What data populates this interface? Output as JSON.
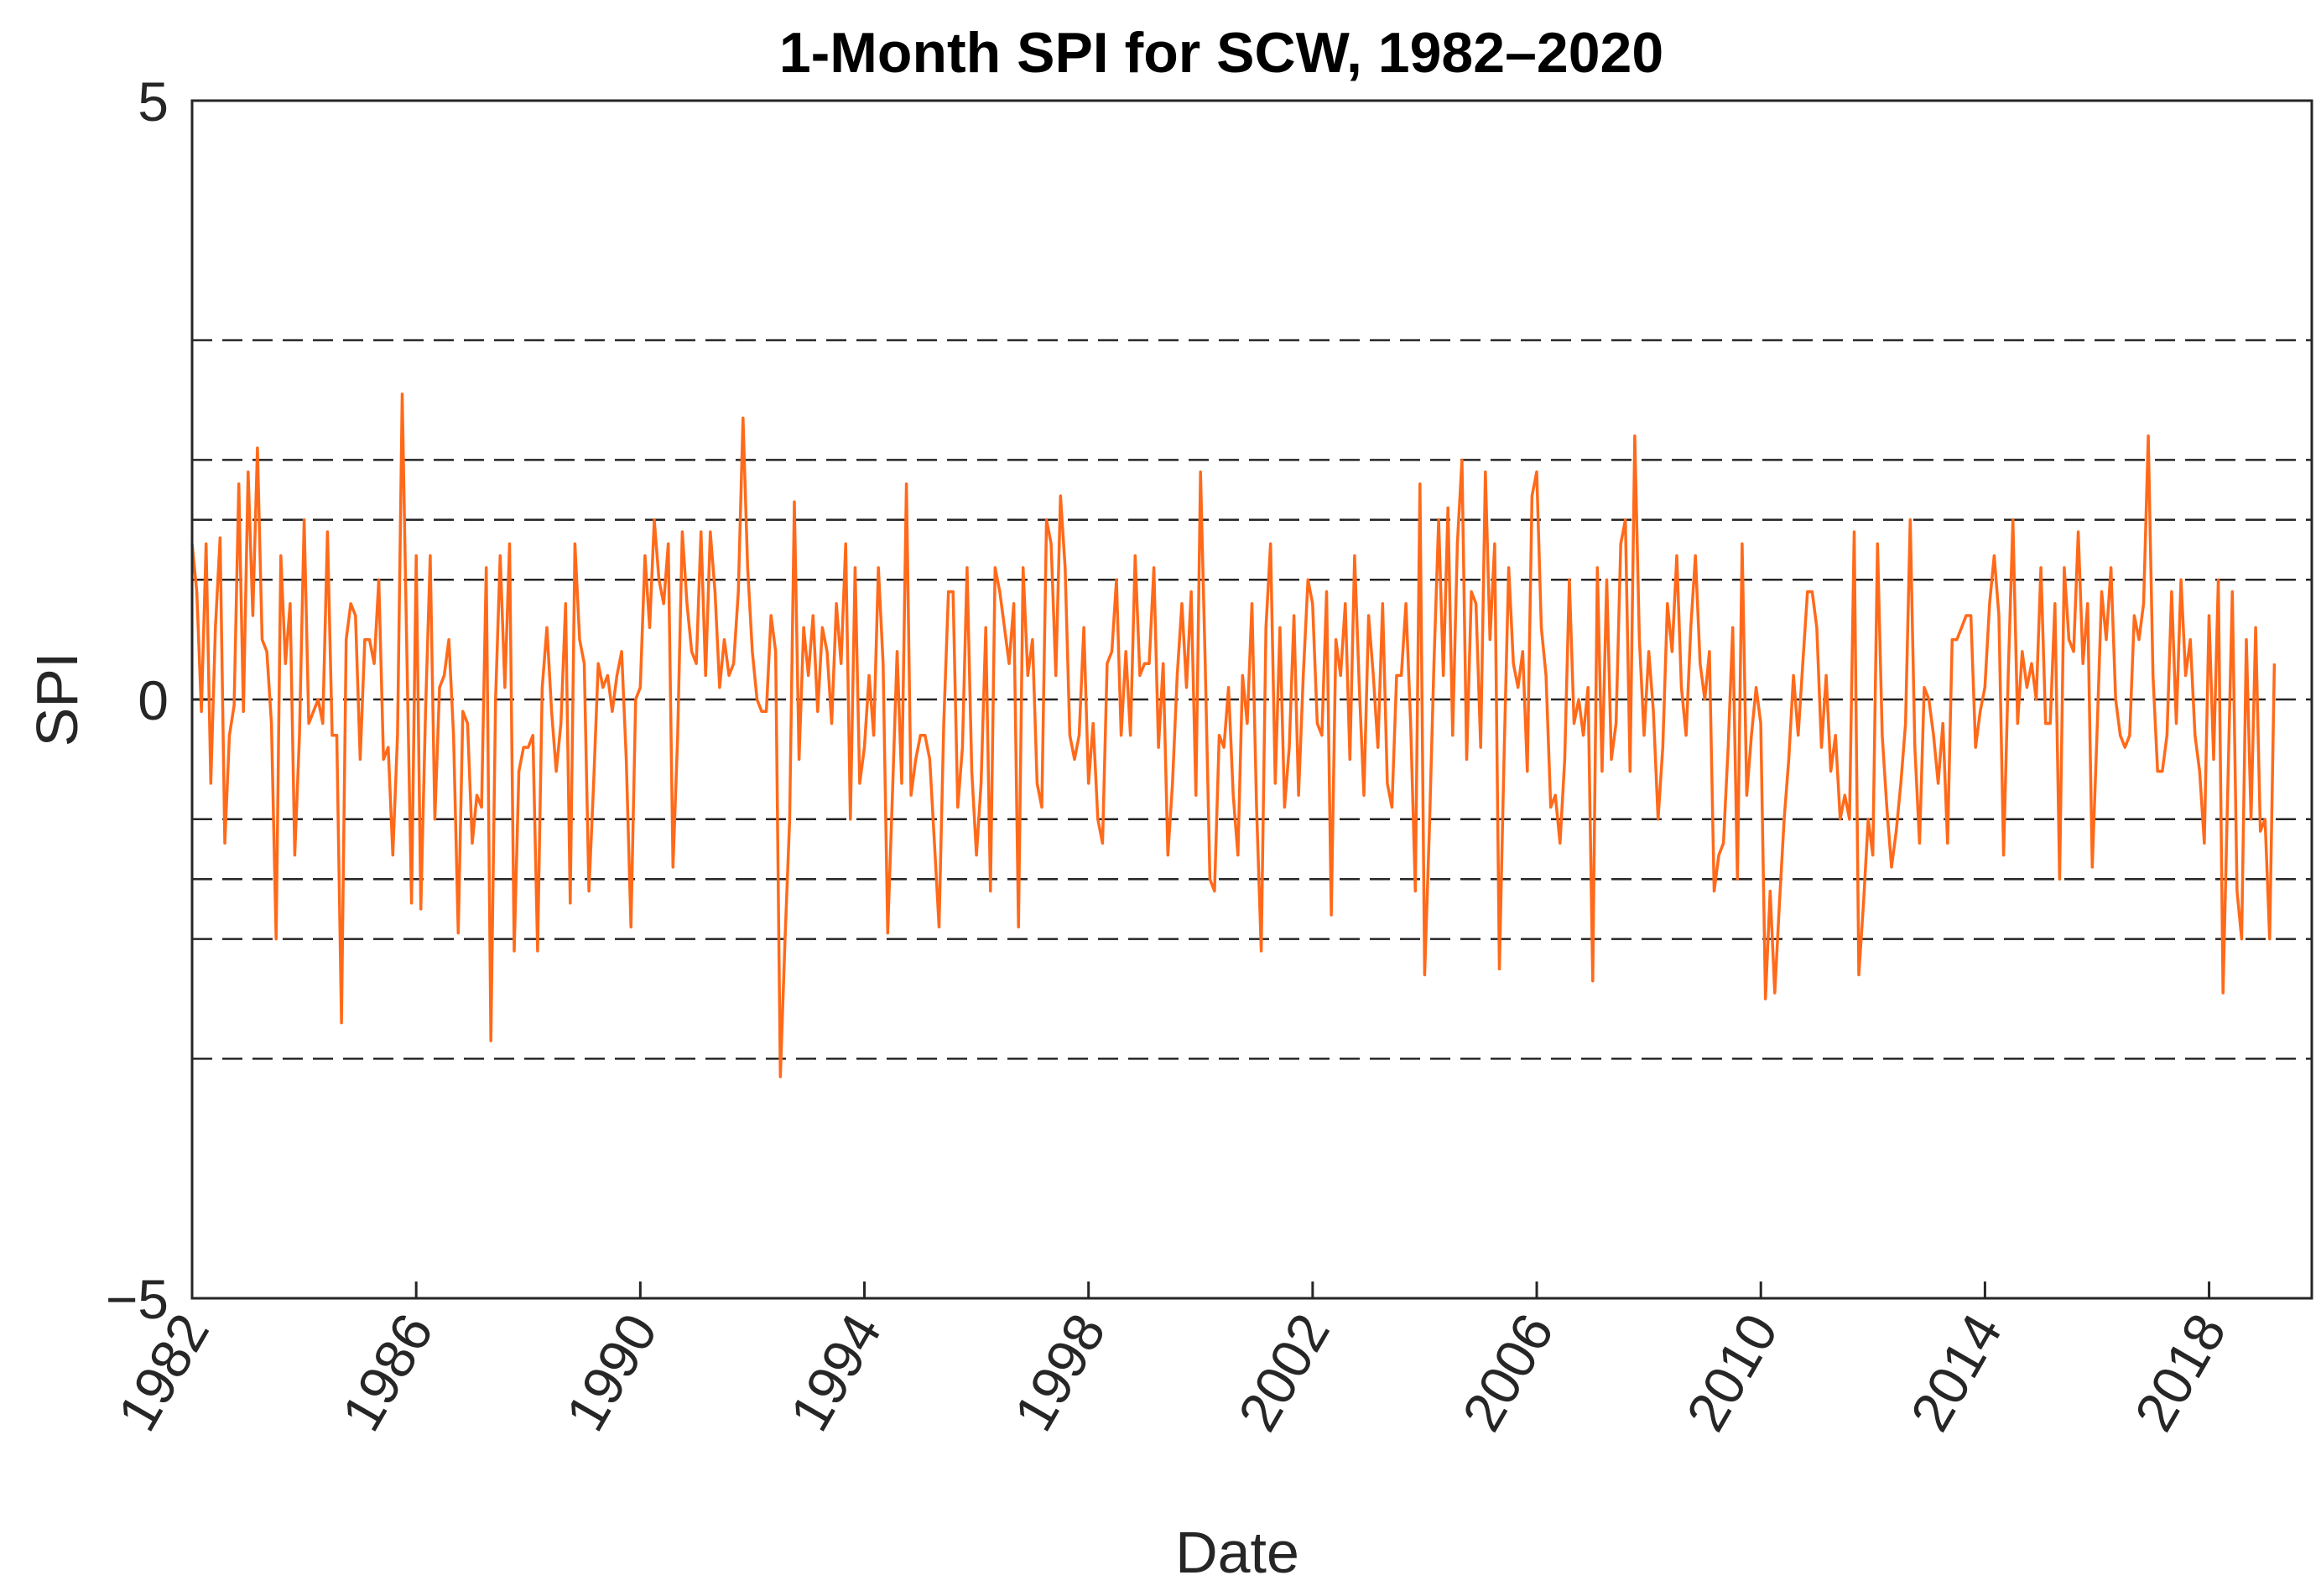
{
  "chart_data": {
    "type": "line",
    "title": "1-Month SPI for SCW, 1982–2020",
    "xlabel": "Date",
    "ylabel": "SPI",
    "xlim": [
      1982,
      2019.833
    ],
    "ylim": [
      -5,
      5
    ],
    "y_ticks": [
      {
        "value": -5,
        "label": "−5"
      },
      {
        "value": 0,
        "label": "0"
      },
      {
        "value": 5,
        "label": "5"
      }
    ],
    "x_ticks": [
      {
        "value": 1982,
        "label": "1982"
      },
      {
        "value": 1986,
        "label": "1986"
      },
      {
        "value": 1990,
        "label": "1990"
      },
      {
        "value": 1994,
        "label": "1994"
      },
      {
        "value": 1998,
        "label": "1998"
      },
      {
        "value": 2002,
        "label": "2002"
      },
      {
        "value": 2006,
        "label": "2006"
      },
      {
        "value": 2010,
        "label": "2010"
      },
      {
        "value": 2014,
        "label": "2014"
      },
      {
        "value": 2018,
        "label": "2018"
      }
    ],
    "threshold_lines": [
      3,
      2,
      1.5,
      1,
      0,
      -1,
      -1.5,
      -2,
      -3
    ],
    "grid": false,
    "series_color": "#ff6a1a",
    "series": [
      {
        "name": "SPI",
        "x_start": 1982,
        "x_step": 0.08333,
        "values": [
          1.3,
          0.9,
          -0.1,
          1.3,
          -0.7,
          0.6,
          1.35,
          -1.2,
          -0.3,
          -0.05,
          1.8,
          -0.1,
          1.9,
          0.7,
          2.1,
          0.5,
          0.4,
          -0.2,
          -2.0,
          1.2,
          0.3,
          0.8,
          -1.3,
          -0.3,
          1.5,
          -0.2,
          -0.1,
          0.0,
          -0.2,
          1.4,
          -0.3,
          -0.3,
          -2.7,
          0.5,
          0.8,
          0.7,
          -0.5,
          0.5,
          0.5,
          0.3,
          1.0,
          -0.5,
          -0.4,
          -1.3,
          -0.3,
          2.55,
          0.4,
          -1.7,
          1.2,
          -1.75,
          -0.1,
          1.2,
          -1.0,
          0.1,
          0.2,
          0.5,
          -0.3,
          -1.95,
          -0.1,
          -0.2,
          -1.2,
          -0.8,
          -0.9,
          1.1,
          -2.85,
          0.0,
          1.2,
          0.1,
          1.3,
          -2.1,
          -0.6,
          -0.4,
          -0.4,
          -0.3,
          -2.1,
          0.1,
          0.6,
          -0.1,
          -0.6,
          -0.2,
          0.8,
          -1.7,
          1.3,
          0.5,
          0.3,
          -1.6,
          -0.7,
          0.3,
          0.1,
          0.2,
          -0.1,
          0.2,
          0.4,
          -0.5,
          -1.9,
          0.0,
          0.1,
          1.2,
          0.6,
          1.5,
          1.0,
          0.8,
          1.3,
          -1.4,
          -0.3,
          1.4,
          0.8,
          0.4,
          0.3,
          1.4,
          0.2,
          1.4,
          0.9,
          0.1,
          0.5,
          0.2,
          0.3,
          0.9,
          2.35,
          1.1,
          0.4,
          0.0,
          -0.1,
          -0.1,
          0.7,
          0.4,
          -3.15,
          -2.0,
          -1.0,
          1.65,
          -0.5,
          0.6,
          0.2,
          0.7,
          -0.1,
          0.6,
          0.4,
          -0.2,
          0.8,
          0.3,
          1.3,
          -1.0,
          1.1,
          -0.7,
          -0.4,
          0.2,
          -0.3,
          1.1,
          0.3,
          -1.95,
          -0.8,
          0.4,
          -0.7,
          1.8,
          -0.8,
          -0.5,
          -0.3,
          -0.3,
          -0.5,
          -1.2,
          -1.9,
          -0.2,
          0.9,
          0.9,
          -0.9,
          -0.4,
          1.1,
          -0.6,
          -1.3,
          -0.7,
          0.6,
          -1.6,
          1.1,
          0.9,
          0.6,
          0.3,
          0.8,
          -1.9,
          1.1,
          0.2,
          0.5,
          -0.7,
          -0.9,
          1.5,
          1.3,
          0.2,
          1.7,
          1.1,
          -0.3,
          -0.5,
          -0.3,
          0.6,
          -0.7,
          -0.2,
          -1.0,
          -1.2,
          0.3,
          0.4,
          1.0,
          -0.3,
          0.4,
          -0.3,
          1.2,
          0.2,
          0.3,
          0.3,
          1.1,
          -0.4,
          0.3,
          -1.3,
          -0.7,
          0.2,
          0.8,
          0.1,
          0.9,
          -0.8,
          1.9,
          0.3,
          -1.5,
          -1.6,
          -0.3,
          -0.4,
          0.1,
          -0.8,
          -1.3,
          0.2,
          -0.2,
          0.8,
          -0.9,
          -2.1,
          0.6,
          1.3,
          -0.7,
          0.6,
          -0.9,
          -0.4,
          0.7,
          -0.8,
          0.2,
          1.0,
          0.8,
          -0.2,
          -0.3,
          0.9,
          -1.8,
          0.5,
          0.2,
          0.8,
          -0.5,
          1.2,
          0.1,
          -0.8,
          0.7,
          0.2,
          -0.4,
          0.8,
          -0.7,
          -0.9,
          0.2,
          0.2,
          0.8,
          -0.2,
          -1.6,
          1.8,
          -2.3,
          -1.1,
          0.3,
          1.5,
          0.2,
          1.6,
          -0.3,
          1.3,
          2.0,
          -0.5,
          0.9,
          0.8,
          -0.4,
          1.9,
          0.5,
          1.3,
          -2.25,
          -0.5,
          1.1,
          0.3,
          0.1,
          0.4,
          -0.6,
          1.7,
          1.9,
          0.6,
          0.2,
          -0.9,
          -0.8,
          -1.2,
          -0.5,
          1.0,
          -0.2,
          0.0,
          -0.3,
          0.1,
          -2.35,
          1.1,
          -0.6,
          1.0,
          -0.5,
          -0.2,
          1.3,
          1.5,
          -0.6,
          2.2,
          0.5,
          -0.3,
          0.4,
          -0.1,
          -1.0,
          -0.4,
          0.8,
          0.4,
          1.2,
          0.1,
          -0.3,
          0.6,
          1.2,
          0.3,
          0.0,
          0.4,
          -1.6,
          -1.3,
          -1.2,
          -0.4,
          0.6,
          -1.5,
          1.3,
          -0.8,
          -0.3,
          0.1,
          -0.2,
          -2.5,
          -1.6,
          -2.45,
          -1.7,
          -1.0,
          -0.5,
          0.2,
          -0.3,
          0.3,
          0.9,
          0.9,
          0.6,
          -0.4,
          0.2,
          -0.6,
          -0.3,
          -1.0,
          -0.8,
          -1.0,
          1.4,
          -2.3,
          -1.7,
          -1.0,
          -1.3,
          1.3,
          -0.3,
          -0.9,
          -1.4,
          -1.1,
          -0.7,
          -0.2,
          1.5,
          -0.4,
          -1.2,
          0.1,
          0.0,
          -0.3,
          -0.7,
          -0.2,
          -1.2,
          0.5,
          0.5,
          0.6,
          0.7,
          0.7,
          -0.4,
          -0.1,
          0.1,
          0.8,
          1.2,
          0.7,
          -1.3,
          0.2,
          1.5,
          -0.2,
          0.4,
          0.1,
          0.3,
          0.0,
          1.1,
          -0.2,
          -0.2,
          0.8,
          -1.5,
          1.1,
          0.5,
          0.4,
          1.4,
          0.3,
          0.8,
          -1.4,
          -0.3,
          0.9,
          0.5,
          1.1,
          0.0,
          -0.3,
          -0.4,
          -0.3,
          0.7,
          0.5,
          0.8,
          2.2,
          0.2,
          -0.6,
          -0.6,
          -0.3,
          0.9,
          -0.2,
          1.0,
          0.2,
          0.5,
          -0.3,
          -0.6,
          -1.2,
          0.7,
          -0.5,
          1.0,
          -2.45,
          -0.8,
          0.9,
          -1.6,
          -2.0,
          0.5,
          -1.0,
          0.6,
          -1.1,
          -1.0,
          -2.0,
          0.3
        ]
      }
    ]
  }
}
